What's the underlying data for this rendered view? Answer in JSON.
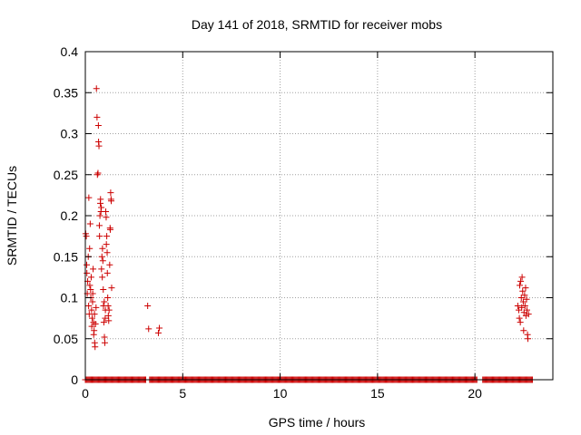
{
  "chart_data": {
    "type": "scatter",
    "title": "Day 141 of 2018, SRMTID for receiver mobs",
    "xlabel": "GPS time / hours",
    "ylabel": "SRMTID / TECUs",
    "xlim": [
      0,
      24
    ],
    "ylim": [
      0,
      0.4
    ],
    "xticks": [
      "0",
      "5",
      "10",
      "15",
      "20"
    ],
    "xtick_values": [
      0,
      5,
      10,
      15,
      20
    ],
    "yticks": [
      "0",
      "0.05",
      "0.1",
      "0.15",
      "0.2",
      "0.25",
      "0.3",
      "0.35",
      "0.4"
    ],
    "ytick_values": [
      0,
      0.05,
      0.1,
      0.15,
      0.2,
      0.25,
      0.3,
      0.35,
      0.4
    ],
    "grid": true,
    "legend": "none",
    "marker": "plus",
    "series": [
      {
        "color": "#cc0000",
        "points": [
          [
            0.02,
            0.178
          ],
          [
            0.05,
            0.175
          ],
          [
            0.07,
            0.14
          ],
          [
            0.08,
            0.13
          ],
          [
            0.1,
            0.105
          ],
          [
            0.12,
            0.12
          ],
          [
            0.15,
            0.15
          ],
          [
            0.17,
            0.09
          ],
          [
            0.18,
            0.222
          ],
          [
            0.2,
            0.08
          ],
          [
            0.22,
            0.16
          ],
          [
            0.23,
            0.115
          ],
          [
            0.25,
            0.19
          ],
          [
            0.27,
            0.11
          ],
          [
            0.28,
            0.1
          ],
          [
            0.3,
            0.125
          ],
          [
            0.32,
            0.085
          ],
          [
            0.33,
            0.065
          ],
          [
            0.35,
            0.075
          ],
          [
            0.37,
            0.095
          ],
          [
            0.38,
            0.105
          ],
          [
            0.4,
            0.135
          ],
          [
            0.42,
            0.07
          ],
          [
            0.43,
            0.055
          ],
          [
            0.45,
            0.06
          ],
          [
            0.47,
            0.08
          ],
          [
            0.48,
            0.045
          ],
          [
            0.5,
            0.04
          ],
          [
            0.52,
            0.068
          ],
          [
            0.55,
            0.088
          ],
          [
            0.57,
            0.355
          ],
          [
            0.6,
            0.32
          ],
          [
            0.62,
            0.25
          ],
          [
            0.65,
            0.252
          ],
          [
            0.67,
            0.31
          ],
          [
            0.68,
            0.29
          ],
          [
            0.7,
            0.285
          ],
          [
            0.72,
            0.188
          ],
          [
            0.73,
            0.175
          ],
          [
            0.75,
            0.2
          ],
          [
            0.77,
            0.215
          ],
          [
            0.78,
            0.22
          ],
          [
            0.8,
            0.205
          ],
          [
            0.82,
            0.21
          ],
          [
            0.83,
            0.135
          ],
          [
            0.85,
            0.15
          ],
          [
            0.87,
            0.125
          ],
          [
            0.88,
            0.16
          ],
          [
            0.9,
            0.145
          ],
          [
            0.92,
            0.11
          ],
          [
            0.93,
            0.09
          ],
          [
            0.95,
            0.07
          ],
          [
            0.97,
            0.095
          ],
          [
            0.98,
            0.052
          ],
          [
            1.0,
            0.045
          ],
          [
            1.02,
            0.075
          ],
          [
            1.03,
            0.085
          ],
          [
            1.05,
            0.205
          ],
          [
            1.07,
            0.198
          ],
          [
            1.08,
            0.165
          ],
          [
            1.1,
            0.175
          ],
          [
            1.12,
            0.155
          ],
          [
            1.13,
            0.13
          ],
          [
            1.15,
            0.1
          ],
          [
            1.17,
            0.09
          ],
          [
            1.18,
            0.078
          ],
          [
            1.2,
            0.072
          ],
          [
            1.22,
            0.085
          ],
          [
            1.25,
            0.14
          ],
          [
            1.27,
            0.185
          ],
          [
            1.28,
            0.183
          ],
          [
            1.3,
            0.228
          ],
          [
            1.32,
            0.22
          ],
          [
            1.33,
            0.218
          ],
          [
            1.35,
            0.112
          ],
          [
            3.2,
            0.09
          ],
          [
            3.25,
            0.062
          ],
          [
            3.75,
            0.057
          ],
          [
            3.8,
            0.063
          ],
          [
            22.2,
            0.09
          ],
          [
            22.25,
            0.085
          ],
          [
            22.28,
            0.075
          ],
          [
            22.3,
            0.115
          ],
          [
            22.33,
            0.07
          ],
          [
            22.35,
            0.12
          ],
          [
            22.38,
            0.1
          ],
          [
            22.4,
            0.088
          ],
          [
            22.42,
            0.125
          ],
          [
            22.45,
            0.108
          ],
          [
            22.48,
            0.095
          ],
          [
            22.5,
            0.06
          ],
          [
            22.52,
            0.082
          ],
          [
            22.55,
            0.103
          ],
          [
            22.57,
            0.09
          ],
          [
            22.6,
            0.112
          ],
          [
            22.62,
            0.078
          ],
          [
            22.65,
            0.098
          ],
          [
            22.67,
            0.085
          ],
          [
            22.7,
            0.055
          ],
          [
            22.72,
            0.05
          ],
          [
            22.75,
            0.08
          ]
        ],
        "zero_runs": [
          [
            0,
            3.1
          ],
          [
            3.3,
            20.1
          ],
          [
            20.4,
            22.95
          ]
        ]
      }
    ]
  }
}
